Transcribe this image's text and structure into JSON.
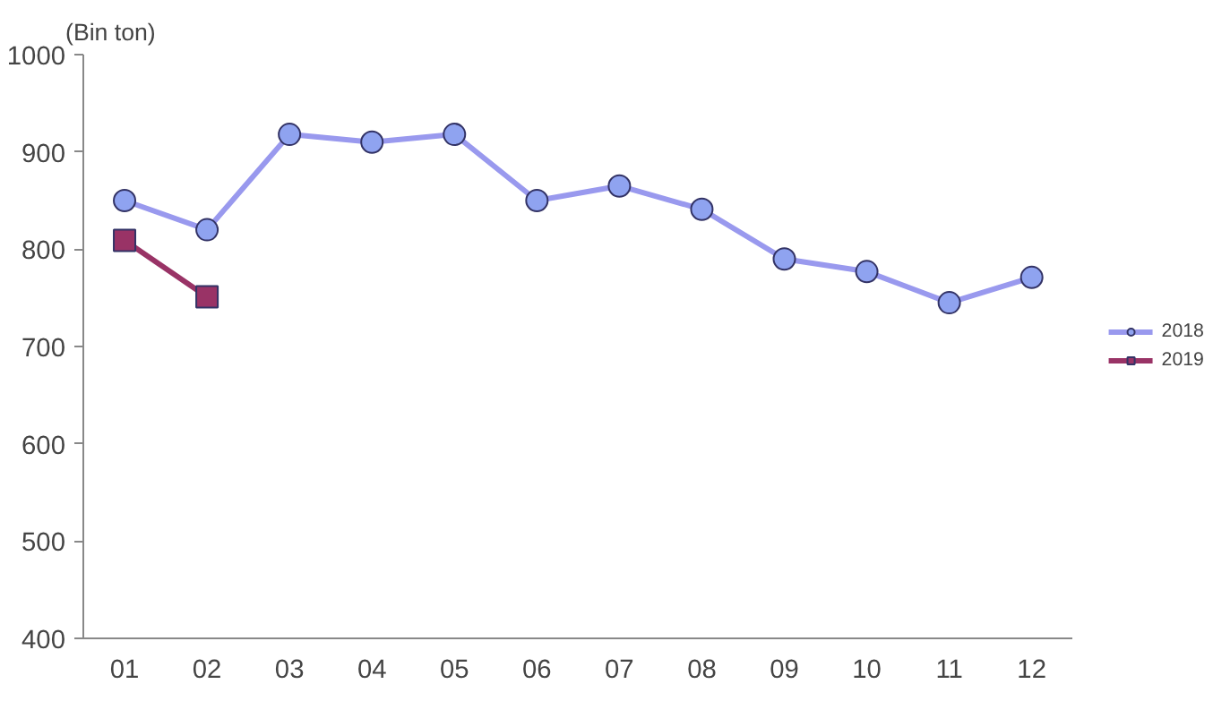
{
  "chart_data": {
    "type": "line",
    "ylabel": "(Bin ton)",
    "categories": [
      "01",
      "02",
      "03",
      "04",
      "05",
      "06",
      "07",
      "08",
      "09",
      "10",
      "11",
      "12"
    ],
    "series": [
      {
        "name": "2018",
        "color": "#9999ee",
        "marker": "circle",
        "values": [
          850,
          820,
          918,
          910,
          918,
          850,
          865,
          841,
          790,
          777,
          745,
          771
        ]
      },
      {
        "name": "2019",
        "color": "#993366",
        "marker": "square",
        "values": [
          809,
          751,
          null,
          null,
          null,
          null,
          null,
          null,
          null,
          null,
          null,
          null
        ]
      }
    ],
    "ylim": [
      400,
      1000
    ],
    "yticks": [
      400,
      500,
      600,
      700,
      800,
      900,
      1000
    ],
    "grid": false,
    "legend": "right"
  }
}
